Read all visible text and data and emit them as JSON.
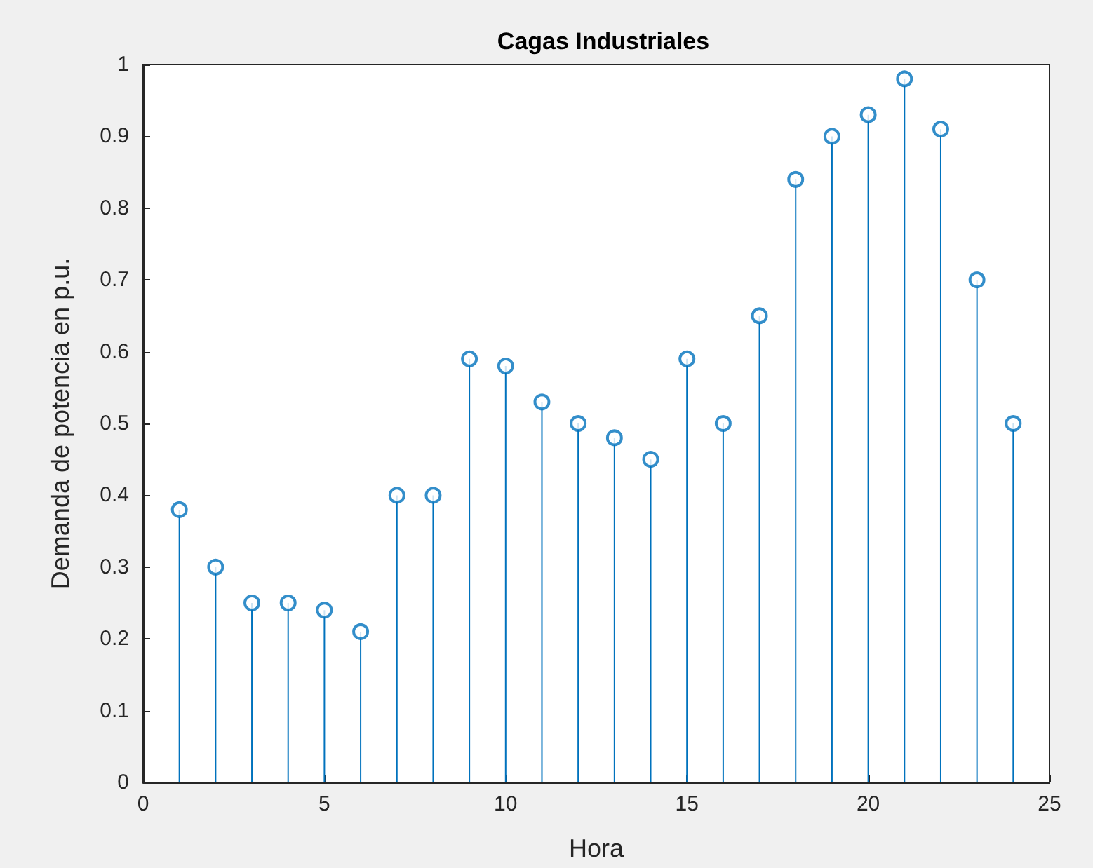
{
  "chart_data": {
    "type": "lollipop",
    "title": "Cagas Industriales",
    "xlabel": "Hora",
    "ylabel": "Demanda de potencia en p.u.",
    "x": [
      1,
      2,
      3,
      4,
      5,
      6,
      7,
      8,
      9,
      10,
      11,
      12,
      13,
      14,
      15,
      16,
      17,
      18,
      19,
      20,
      21,
      22,
      23,
      24
    ],
    "values": [
      0.38,
      0.3,
      0.25,
      0.25,
      0.24,
      0.21,
      0.4,
      0.4,
      0.59,
      0.58,
      0.53,
      0.5,
      0.48,
      0.45,
      0.59,
      0.5,
      0.65,
      0.84,
      0.9,
      0.93,
      0.98,
      0.91,
      0.7,
      0.5
    ],
    "color": "#0072bd",
    "marker": "circle",
    "xlim": [
      0,
      25
    ],
    "xticks": [
      0,
      5,
      10,
      15,
      20,
      25
    ],
    "ylim": [
      0,
      1
    ],
    "yticks": [
      0,
      0.1,
      0.2,
      0.3,
      0.4,
      0.5,
      0.6,
      0.7,
      0.8,
      0.9,
      1
    ]
  }
}
